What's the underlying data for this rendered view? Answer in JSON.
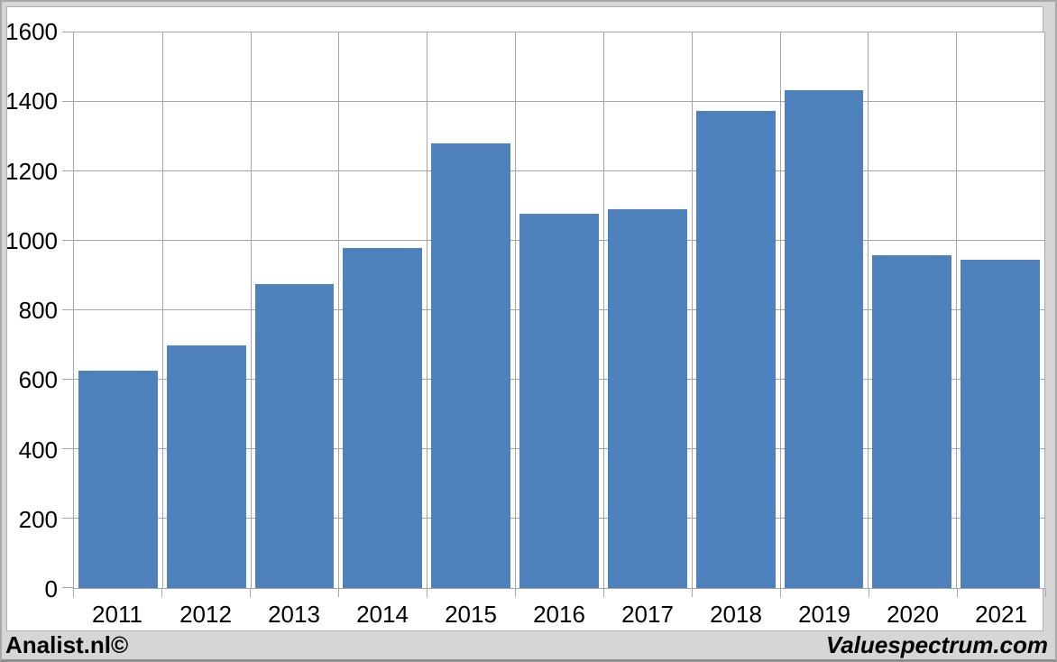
{
  "chart_data": {
    "type": "bar",
    "title": "",
    "categories": [
      "2011",
      "2012",
      "2013",
      "2014",
      "2015",
      "2016",
      "2017",
      "2018",
      "2019",
      "2020",
      "2021"
    ],
    "values": [
      625,
      698,
      875,
      980,
      1281,
      1078,
      1091,
      1375,
      1435,
      958,
      945
    ],
    "xlabel": "",
    "ylabel": "",
    "ylim": [
      0,
      1600
    ],
    "ytick_step": 200,
    "yticks": [
      "0",
      "200",
      "400",
      "600",
      "800",
      "1000",
      "1200",
      "1400",
      "1600"
    ],
    "grid": true,
    "legend_position": "none",
    "bar_color": "#4f81bd"
  },
  "footer": {
    "left": "Analist.nl©",
    "right": "Valuespectrum.com"
  },
  "colors": {
    "background": "#d6d6d6",
    "panel": "#ffffff",
    "gridline": "#a6a6a6",
    "bar": "#4f81bd",
    "text": "#000000"
  }
}
